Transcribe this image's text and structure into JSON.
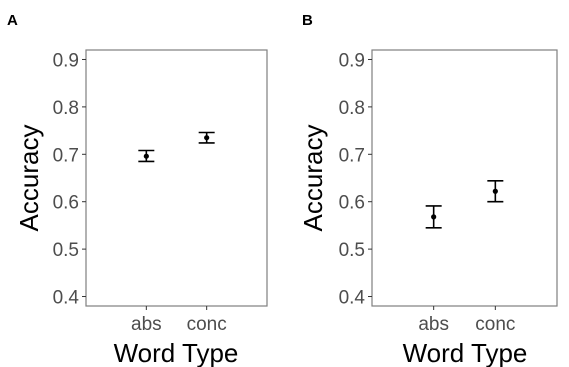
{
  "chart_data": [
    {
      "type": "scatter",
      "panel": "A",
      "xlabel": "Word Type",
      "ylabel": "Accuracy",
      "categories": [
        "abs",
        "conc"
      ],
      "values": [
        0.696,
        0.735
      ],
      "error_low": [
        0.685,
        0.724
      ],
      "error_high": [
        0.708,
        0.746
      ],
      "ylim": [
        0.38,
        0.92
      ],
      "yticks": [
        "0.4",
        "0.5",
        "0.6",
        "0.7",
        "0.8",
        "0.9"
      ],
      "grid": false,
      "error_bars": true
    },
    {
      "type": "scatter",
      "panel": "B",
      "xlabel": "Word Type",
      "ylabel": "Accuracy",
      "categories": [
        "abs",
        "conc"
      ],
      "values": [
        0.568,
        0.622
      ],
      "error_low": [
        0.545,
        0.6
      ],
      "error_high": [
        0.591,
        0.644
      ],
      "ylim": [
        0.38,
        0.92
      ],
      "yticks": [
        "0.4",
        "0.5",
        "0.6",
        "0.7",
        "0.8",
        "0.9"
      ],
      "grid": false,
      "error_bars": true
    }
  ]
}
